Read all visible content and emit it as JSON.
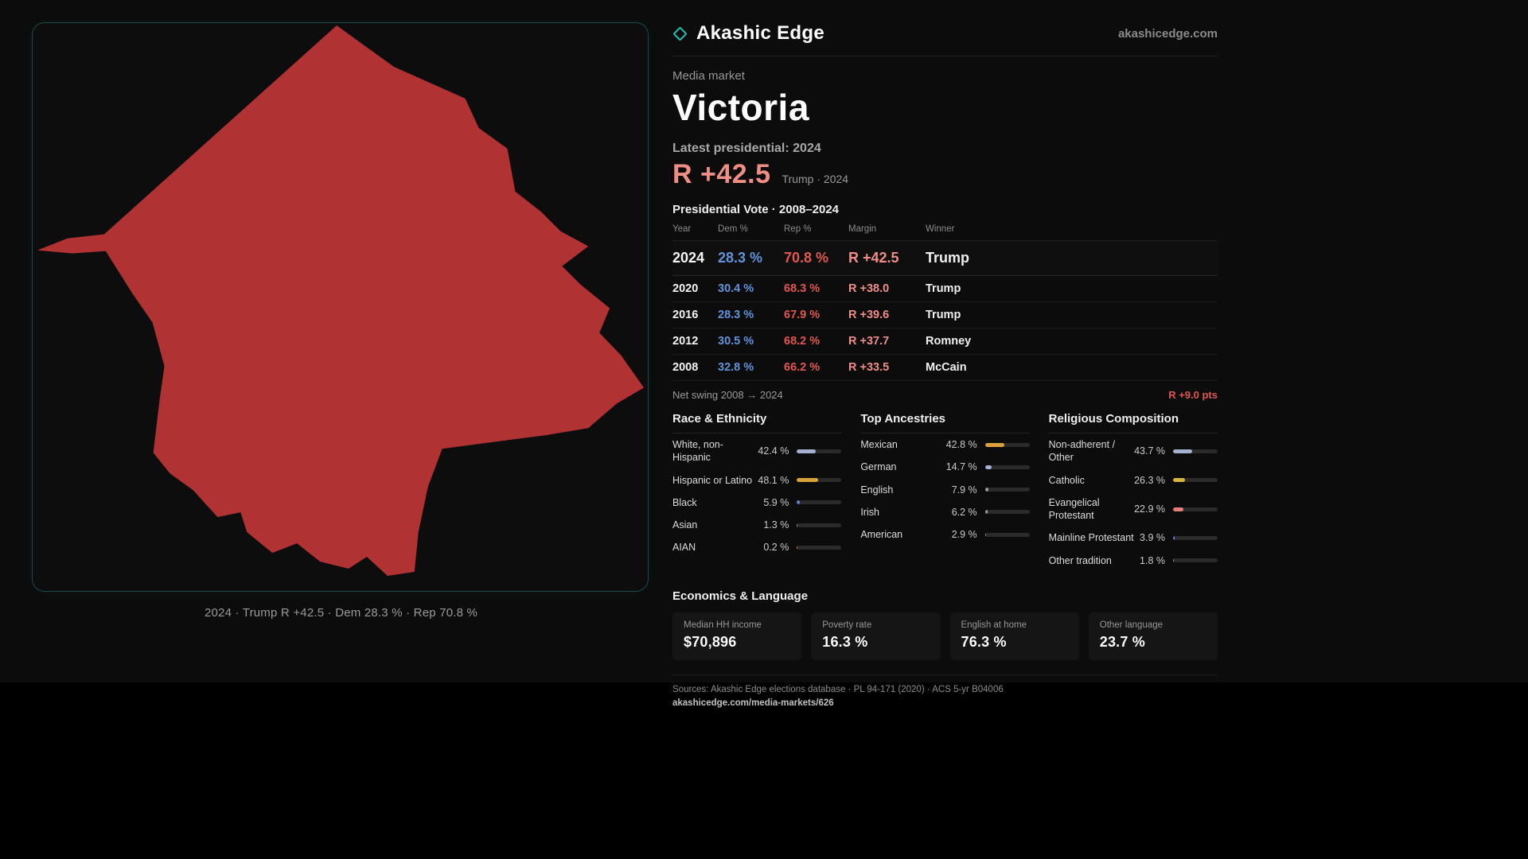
{
  "theme": {
    "background": "#0c0c0c",
    "accent_teal": "#1fc2b2",
    "dem_blue": "#5f93dc",
    "rep_red": "#e2574e",
    "margin_pink": "#ef8e85"
  },
  "brand": {
    "name": "Akashic Edge",
    "domain": "akashicedge.com"
  },
  "map": {
    "fill": "#b13232",
    "caption": "2024 · Trump R +42.5 · Dem 28.3 % · Rep 70.8 %"
  },
  "header": {
    "kicker": "Media market",
    "title": "Victoria",
    "latest_label": "Latest presidential: 2024",
    "margin_value": "R +42.5",
    "margin_detail": "Trump · 2024"
  },
  "vote_table": {
    "title": "Presidential Vote · 2008–2024",
    "columns": [
      "Year",
      "Dem %",
      "Rep %",
      "Margin",
      "Winner"
    ],
    "rows": [
      {
        "year": "2024",
        "dem": "28.3 %",
        "rep": "70.8 %",
        "margin": "R +42.5",
        "winner": "Trump",
        "highlight": true
      },
      {
        "year": "2020",
        "dem": "30.4 %",
        "rep": "68.3 %",
        "margin": "R +38.0",
        "winner": "Trump",
        "highlight": false
      },
      {
        "year": "2016",
        "dem": "28.3 %",
        "rep": "67.9 %",
        "margin": "R +39.6",
        "winner": "Trump",
        "highlight": false
      },
      {
        "year": "2012",
        "dem": "30.5 %",
        "rep": "68.2 %",
        "margin": "R +37.7",
        "winner": "Romney",
        "highlight": false
      },
      {
        "year": "2008",
        "dem": "32.8 %",
        "rep": "66.2 %",
        "margin": "R +33.5",
        "winner": "McCain",
        "highlight": false
      }
    ],
    "net_swing_label": "Net swing 2008 → 2024",
    "net_swing_value": "R +9.0 pts"
  },
  "demographics": [
    {
      "title": "Race & Ethnicity",
      "rows": [
        {
          "label": "White, non-Hispanic",
          "value": "42.4 %",
          "pct": 42.4,
          "color": "#a6b0cf"
        },
        {
          "label": "Hispanic or Latino",
          "value": "48.1 %",
          "pct": 48.1,
          "color": "#d9a13c"
        },
        {
          "label": "Black",
          "value": "5.9 %",
          "pct": 5.9,
          "color": "#5b7fd4"
        },
        {
          "label": "Asian",
          "value": "1.3 %",
          "pct": 1.3,
          "color": "#9a9a9a"
        },
        {
          "label": "AIAN",
          "value": "0.2 %",
          "pct": 0.2,
          "color": "#d08030"
        }
      ]
    },
    {
      "title": "Top Ancestries",
      "rows": [
        {
          "label": "Mexican",
          "value": "42.8 %",
          "pct": 42.8,
          "color": "#d9a13c"
        },
        {
          "label": "German",
          "value": "14.7 %",
          "pct": 14.7,
          "color": "#a6b0cf"
        },
        {
          "label": "English",
          "value": "7.9 %",
          "pct": 7.9,
          "color": "#9a9a9a"
        },
        {
          "label": "Irish",
          "value": "6.2 %",
          "pct": 6.2,
          "color": "#9a9a9a"
        },
        {
          "label": "American",
          "value": "2.9 %",
          "pct": 2.9,
          "color": "#9a9a9a"
        }
      ]
    },
    {
      "title": "Religious Composition",
      "rows": [
        {
          "label": "Non-adherent / Other",
          "value": "43.7 %",
          "pct": 43.7,
          "color": "#a6b0cf"
        },
        {
          "label": "Catholic",
          "value": "26.3 %",
          "pct": 26.3,
          "color": "#d9b43c"
        },
        {
          "label": "Evangelical Protestant",
          "value": "22.9 %",
          "pct": 22.9,
          "color": "#e2817a"
        },
        {
          "label": "Mainline Protestant",
          "value": "3.9 %",
          "pct": 3.9,
          "color": "#5b7fd4"
        },
        {
          "label": "Other tradition",
          "value": "1.8 %",
          "pct": 1.8,
          "color": "#9a9a9a"
        }
      ]
    }
  ],
  "economics": {
    "title": "Economics & Language",
    "stats": [
      {
        "label": "Median HH income",
        "value": "$70,896"
      },
      {
        "label": "Poverty rate",
        "value": "16.3 %"
      },
      {
        "label": "English at home",
        "value": "76.3 %"
      },
      {
        "label": "Other language",
        "value": "23.7 %"
      }
    ]
  },
  "footer": {
    "sources": "Sources: Akashic Edge elections database · PL 94-171 (2020) · ACS 5-yr B04006",
    "link": "akashicedge.com/media-markets/626"
  },
  "chart_data": [
    {
      "type": "table",
      "title": "Presidential Vote · 2008–2024",
      "columns": [
        "Year",
        "Dem %",
        "Rep %",
        "Margin",
        "Winner"
      ],
      "rows": [
        [
          2024,
          28.3,
          70.8,
          "R +42.5",
          "Trump"
        ],
        [
          2020,
          30.4,
          68.3,
          "R +38.0",
          "Trump"
        ],
        [
          2016,
          28.3,
          67.9,
          "R +39.6",
          "Trump"
        ],
        [
          2012,
          30.5,
          68.2,
          "R +37.7",
          "Romney"
        ],
        [
          2008,
          32.8,
          66.2,
          "R +33.5",
          "McCain"
        ]
      ],
      "annotations": [
        "Net swing 2008 → 2024: R +9.0 pts",
        "Latest presidential 2024: R +42.5 (Trump)"
      ]
    },
    {
      "type": "bar",
      "title": "Race & Ethnicity",
      "categories": [
        "White, non-Hispanic",
        "Hispanic or Latino",
        "Black",
        "Asian",
        "AIAN"
      ],
      "values": [
        42.4,
        48.1,
        5.9,
        1.3,
        0.2
      ],
      "unit": "%",
      "xlim": [
        0,
        100
      ],
      "orientation": "horizontal"
    },
    {
      "type": "bar",
      "title": "Top Ancestries",
      "categories": [
        "Mexican",
        "German",
        "English",
        "Irish",
        "American"
      ],
      "values": [
        42.8,
        14.7,
        7.9,
        6.2,
        2.9
      ],
      "unit": "%",
      "xlim": [
        0,
        100
      ],
      "orientation": "horizontal"
    },
    {
      "type": "bar",
      "title": "Religious Composition",
      "categories": [
        "Non-adherent / Other",
        "Catholic",
        "Evangelical Protestant",
        "Mainline Protestant",
        "Other tradition"
      ],
      "values": [
        43.7,
        26.3,
        22.9,
        3.9,
        1.8
      ],
      "unit": "%",
      "xlim": [
        0,
        100
      ],
      "orientation": "horizontal"
    },
    {
      "type": "bar",
      "title": "Economics & Language",
      "categories": [
        "Median HH income",
        "Poverty rate",
        "English at home",
        "Other language"
      ],
      "values": [
        70896,
        16.3,
        76.3,
        23.7
      ]
    }
  ]
}
